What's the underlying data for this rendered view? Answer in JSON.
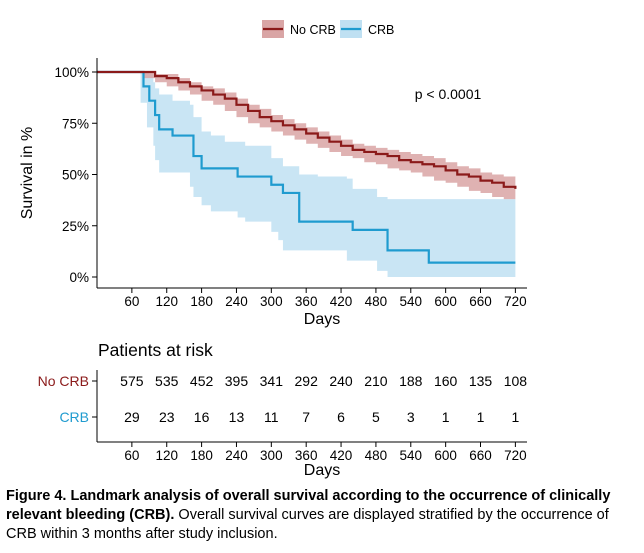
{
  "chart_data": {
    "type": "kaplan-meier",
    "xlabel": "Days",
    "ylabel": "Survival in %",
    "xlim": [
      0,
      740
    ],
    "ylim": [
      0,
      100
    ],
    "x_ticks": [
      60,
      120,
      180,
      240,
      300,
      360,
      420,
      480,
      540,
      600,
      660,
      720
    ],
    "y_ticks": [
      0,
      25,
      50,
      75,
      100
    ],
    "y_tick_labels": [
      "0%",
      "25%",
      "50%",
      "75%",
      "100%"
    ],
    "annotation": "p < 0.0001",
    "legend": {
      "position": "top",
      "entries": [
        "No CRB",
        "CRB"
      ]
    },
    "series": [
      {
        "name": "No CRB",
        "color": "#8B1A1A",
        "ci_color": "#D9A5A5",
        "x": [
          0,
          60,
          80,
          100,
          120,
          140,
          160,
          180,
          200,
          220,
          240,
          260,
          280,
          300,
          320,
          340,
          360,
          380,
          400,
          420,
          440,
          460,
          480,
          500,
          520,
          540,
          560,
          580,
          600,
          620,
          640,
          660,
          680,
          700,
          720
        ],
        "y": [
          100,
          100,
          100,
          98,
          97,
          95,
          93,
          91,
          89,
          87,
          84,
          81,
          78,
          76,
          74,
          72,
          70,
          68,
          66,
          64,
          62,
          61,
          60,
          59,
          57,
          56,
          55,
          54,
          52,
          50,
          49,
          47,
          46,
          44,
          43
        ],
        "ci_lower": [
          100,
          100,
          100,
          97,
          95,
          93,
          91,
          89,
          86,
          84,
          81,
          78,
          75,
          73,
          71,
          69,
          67,
          65,
          63,
          61,
          59,
          58,
          56,
          55,
          53,
          52,
          51,
          49,
          47,
          46,
          44,
          42,
          41,
          39,
          38
        ],
        "ci_upper": [
          100,
          100,
          100,
          99,
          99,
          97,
          95,
          93,
          92,
          90,
          87,
          84,
          82,
          79,
          77,
          75,
          73,
          71,
          69,
          67,
          65,
          64,
          63,
          62,
          61,
          60,
          59,
          58,
          56,
          54,
          53,
          51,
          50,
          49,
          48
        ]
      },
      {
        "name": "CRB",
        "color": "#1F9BCF",
        "ci_color": "#BFE0F2",
        "x": [
          0,
          75,
          80,
          86,
          90,
          97,
          100,
          107,
          130,
          160,
          166,
          180,
          196,
          220,
          242,
          255,
          300,
          312,
          320,
          348,
          380,
          412,
          430,
          440,
          482,
          500,
          550,
          571,
          720
        ],
        "y": [
          100,
          100,
          93,
          93,
          86,
          86,
          79,
          72,
          69,
          69,
          59,
          53,
          53,
          53,
          49,
          49,
          45,
          45,
          41,
          27,
          27,
          27,
          27,
          23,
          23,
          13,
          13,
          7,
          7
        ],
        "ci_lower": [
          100,
          100,
          85,
          85,
          73,
          73,
          64,
          57,
          51,
          51,
          44,
          39,
          35,
          32,
          32,
          29,
          27,
          22,
          18,
          13,
          13,
          13,
          13,
          8,
          8,
          3,
          0,
          0,
          0
        ],
        "ci_upper": [
          100,
          100,
          100,
          100,
          99,
          95,
          92,
          89,
          86,
          84,
          78,
          71,
          69,
          66,
          66,
          64,
          58,
          58,
          54,
          50,
          49,
          49,
          48,
          43,
          39,
          38,
          38,
          38,
          38
        ]
      }
    ],
    "risk_table": {
      "title": "Patients at risk",
      "x_ticks": [
        60,
        120,
        180,
        240,
        300,
        360,
        420,
        480,
        540,
        600,
        660,
        720
      ],
      "xlabel": "Days",
      "rows": [
        {
          "label": "No CRB",
          "color": "#8B1A1A",
          "values": [
            "575",
            "535",
            "452",
            "395",
            "341",
            "292",
            "240",
            "210",
            "188",
            "160",
            "135",
            "108"
          ]
        },
        {
          "label": "CRB",
          "color": "#1F9BCF",
          "values": [
            "29",
            "23",
            "16",
            "13",
            "11",
            "7",
            "6",
            "5",
            "3",
            "1",
            "1",
            "1"
          ]
        }
      ]
    }
  },
  "caption": {
    "bold": "Figure 4. Landmark analysis of overall survival according to the occurrence of clinically relevant bleeding (CRB).",
    "text": " Overall survival curves are displayed stratified by the occurrence of CRB within 3 months after study inclusion."
  }
}
